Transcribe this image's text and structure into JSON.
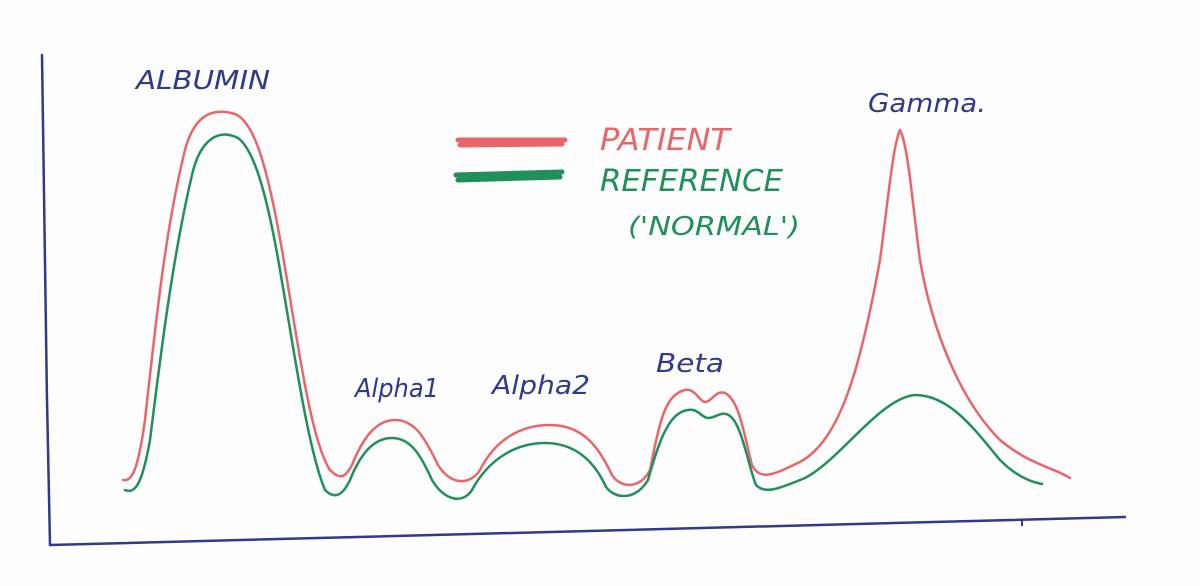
{
  "colors": {
    "paper": "#fdfdfd",
    "axis": "#2f3a8a",
    "label": "#2f3a8a",
    "patient": "#e8666a",
    "reference": "#1f8f5c"
  },
  "legend": {
    "patient": "PATIENT",
    "reference": "REFERENCE",
    "reference_note": "('NORMAL')"
  },
  "peaks": {
    "albumin": "ALBUMIN",
    "alpha1": "Alpha1",
    "alpha2": "Alpha2",
    "beta": "Beta",
    "gamma": "Gamma."
  }
}
